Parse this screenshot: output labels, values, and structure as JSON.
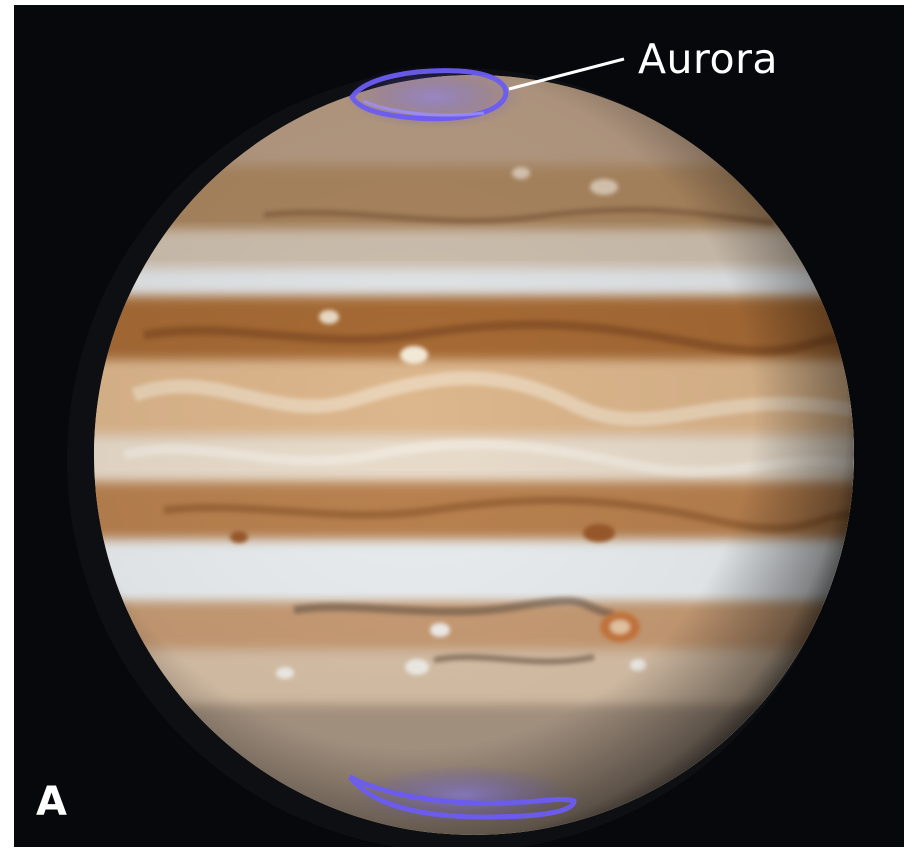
{
  "figure": {
    "callout_label": "Aurora",
    "panel_letter": "A"
  }
}
